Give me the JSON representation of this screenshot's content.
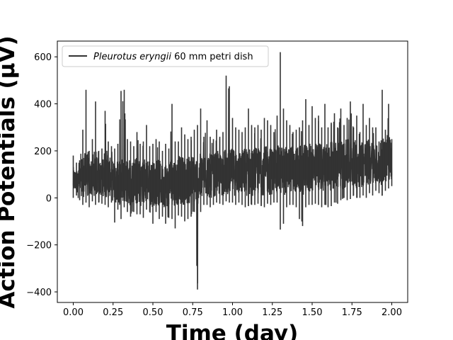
{
  "chart_data": {
    "type": "line",
    "xlabel": "Time (day)",
    "ylabel": "Action Potentials (μV)",
    "xlim": [
      -0.1,
      2.1
    ],
    "ylim": [
      -445,
      667
    ],
    "xticks": [
      0.0,
      0.25,
      0.5,
      0.75,
      1.0,
      1.25,
      1.5,
      1.75,
      2.0
    ],
    "xtick_labels": [
      "0.00",
      "0.25",
      "0.50",
      "0.75",
      "1.00",
      "1.25",
      "1.50",
      "1.75",
      "2.00"
    ],
    "yticks": [
      -400,
      -200,
      0,
      200,
      400,
      600
    ],
    "ytick_labels": [
      "−400",
      "−200",
      "0",
      "200",
      "400",
      "600"
    ],
    "grid": false,
    "legend_position": "top-left",
    "series": [
      {
        "name_italic": "Pleurotus eryngii",
        "name_rest": " 60 mm petri dish",
        "color": "#333333",
        "x": [
          0.0,
          0.02,
          0.04,
          0.06,
          0.08,
          0.1,
          0.12,
          0.14,
          0.16,
          0.18,
          0.2,
          0.22,
          0.24,
          0.26,
          0.28,
          0.3,
          0.32,
          0.34,
          0.36,
          0.38,
          0.4,
          0.42,
          0.44,
          0.46,
          0.48,
          0.5,
          0.52,
          0.54,
          0.56,
          0.58,
          0.6,
          0.62,
          0.64,
          0.66,
          0.68,
          0.7,
          0.72,
          0.74,
          0.76,
          0.78,
          0.8,
          0.82,
          0.84,
          0.86,
          0.88,
          0.9,
          0.92,
          0.94,
          0.96,
          0.98,
          1.0,
          1.02,
          1.04,
          1.06,
          1.08,
          1.1,
          1.12,
          1.14,
          1.16,
          1.18,
          1.2,
          1.22,
          1.24,
          1.26,
          1.28,
          1.3,
          1.32,
          1.34,
          1.36,
          1.38,
          1.4,
          1.42,
          1.44,
          1.46,
          1.48,
          1.5,
          1.52,
          1.54,
          1.56,
          1.58,
          1.6,
          1.62,
          1.64,
          1.66,
          1.68,
          1.7,
          1.72,
          1.74,
          1.76,
          1.78,
          1.8,
          1.82,
          1.84,
          1.86,
          1.88,
          1.9,
          1.92,
          1.94,
          1.96,
          1.98,
          2.0
        ],
        "max": [
          180,
          150,
          160,
          290,
          460,
          200,
          250,
          410,
          200,
          210,
          370,
          240,
          220,
          210,
          230,
          455,
          460,
          250,
          240,
          220,
          280,
          230,
          240,
          310,
          220,
          230,
          250,
          240,
          200,
          230,
          210,
          400,
          240,
          240,
          300,
          270,
          250,
          260,
          290,
          310,
          380,
          260,
          330,
          260,
          250,
          290,
          260,
          280,
          520,
          475,
          340,
          300,
          290,
          280,
          300,
          380,
          310,
          300,
          310,
          290,
          340,
          330,
          310,
          280,
          350,
          620,
          380,
          330,
          310,
          280,
          290,
          300,
          330,
          420,
          310,
          390,
          340,
          350,
          300,
          400,
          300,
          320,
          360,
          300,
          380,
          310,
          340,
          410,
          300,
          350,
          280,
          400,
          310,
          340,
          300,
          300,
          240,
          460,
          290,
          400,
          250
        ],
        "min": [
          0,
          10,
          -10,
          -30,
          -20,
          -40,
          -15,
          -30,
          -20,
          -25,
          -30,
          -40,
          -20,
          -105,
          -50,
          -90,
          -40,
          -60,
          -80,
          -60,
          -70,
          -70,
          -85,
          -50,
          -60,
          -110,
          -60,
          -90,
          -80,
          -110,
          -85,
          -90,
          -130,
          -75,
          -80,
          -100,
          -90,
          -80,
          -60,
          -390,
          -60,
          -30,
          -30,
          -40,
          -30,
          -20,
          -25,
          -30,
          -15,
          -20,
          -20,
          -30,
          -20,
          -30,
          -40,
          -35,
          -30,
          -30,
          -25,
          -35,
          -40,
          -25,
          -30,
          -20,
          -20,
          -135,
          -110,
          -40,
          -30,
          -30,
          -40,
          -90,
          -120,
          -40,
          -30,
          -30,
          -25,
          -30,
          -40,
          -30,
          -40,
          -35,
          -20,
          -25,
          -10,
          0,
          -10,
          -5,
          10,
          0,
          0,
          10,
          0,
          20,
          10,
          30,
          20,
          10,
          30,
          40,
          50
        ],
        "center": [
          60,
          65,
          70,
          70,
          75,
          80,
          80,
          80,
          80,
          80,
          85,
          85,
          85,
          60,
          60,
          55,
          60,
          55,
          55,
          55,
          55,
          55,
          55,
          55,
          55,
          50,
          50,
          50,
          50,
          50,
          50,
          60,
          55,
          60,
          60,
          60,
          60,
          65,
          65,
          60,
          70,
          75,
          75,
          75,
          80,
          80,
          80,
          85,
          90,
          90,
          90,
          90,
          90,
          95,
          95,
          95,
          95,
          95,
          95,
          100,
          100,
          100,
          100,
          100,
          105,
          105,
          100,
          105,
          110,
          110,
          110,
          105,
          100,
          110,
          110,
          115,
          115,
          115,
          120,
          120,
          120,
          120,
          125,
          125,
          125,
          125,
          130,
          130,
          130,
          130,
          135,
          135,
          135,
          140,
          140,
          140,
          140,
          145,
          145,
          145,
          150
        ]
      }
    ]
  }
}
